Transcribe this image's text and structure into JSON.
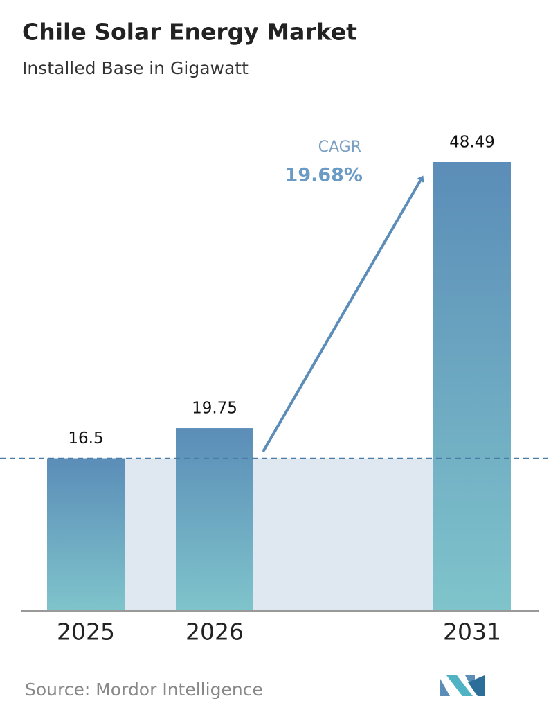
{
  "chart_data": {
    "type": "bar",
    "title": "Chile Solar Energy Market",
    "subtitle": "Installed Base in Gigawatt",
    "categories": [
      "2025",
      "2026",
      "2031"
    ],
    "values": [
      16.5,
      19.75,
      48.49
    ],
    "color": [
      "#5b8db8",
      "#7fc4cb"
    ],
    "annotation": {
      "label": "CAGR",
      "value": "19.68%"
    },
    "source": "Source:  Mordor Intelligence"
  }
}
